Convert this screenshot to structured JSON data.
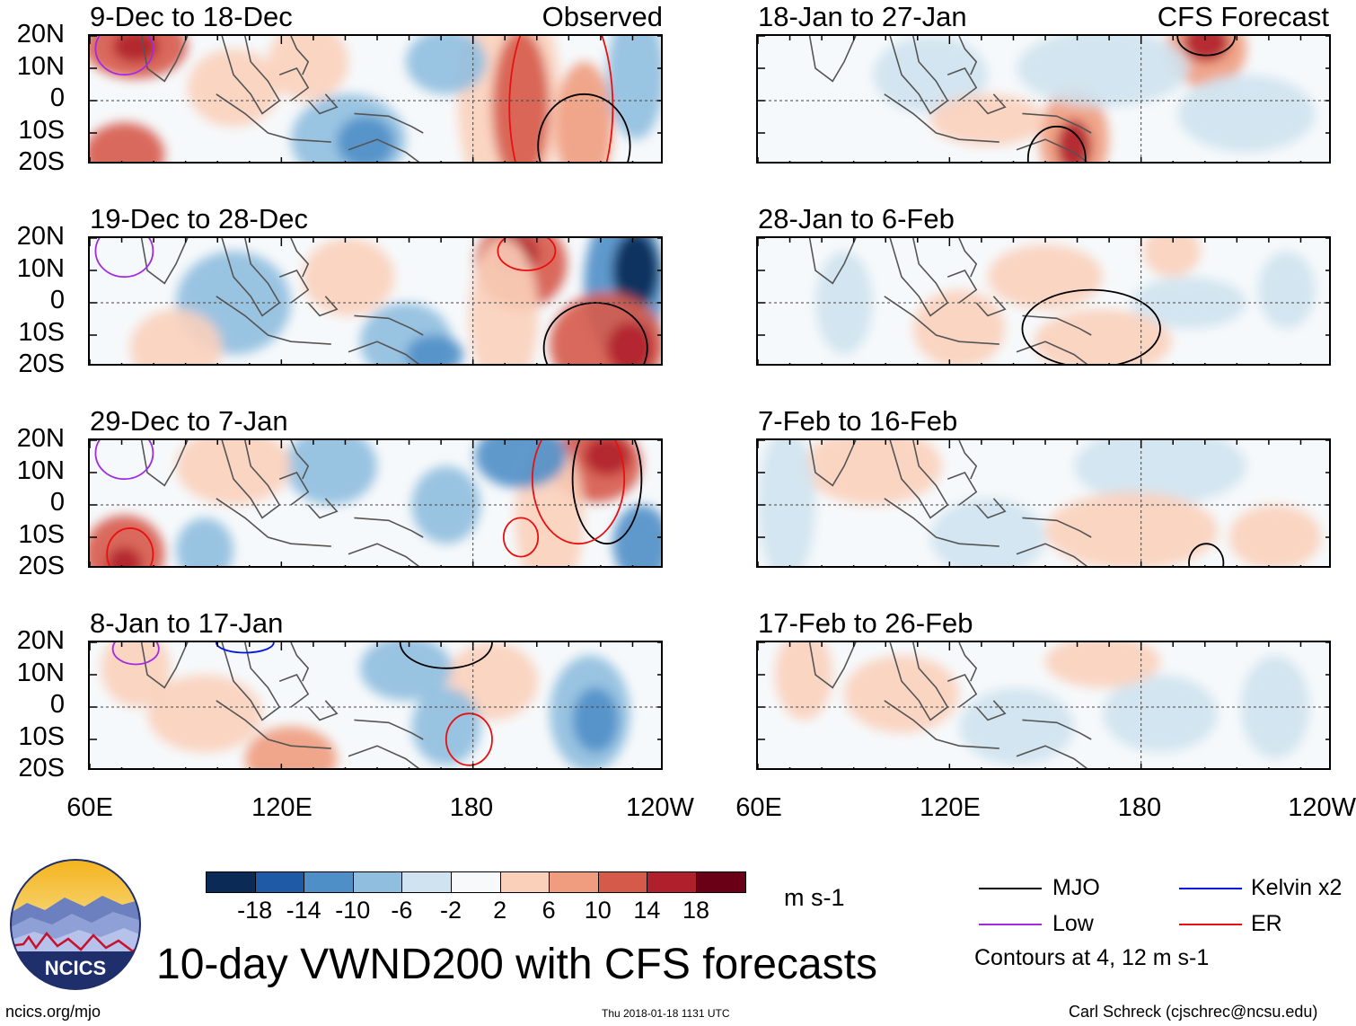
{
  "figure": {
    "main_title": "10-day VWND200 with CFS forecasts",
    "website": "ncics.org/mjo",
    "timestamp": "Thu 2018-01-18 1131 UTC",
    "author": "Carl Schreck (cjschrec@ncsu.edu)",
    "logo_text": "NCICS",
    "observed_tag": "Observed",
    "forecast_tag": "CFS Forecast"
  },
  "axes": {
    "lat_labels": [
      "20N",
      "10N",
      "0",
      "10S",
      "20S"
    ],
    "lon_labels": [
      "60E",
      "120E",
      "180",
      "120W"
    ]
  },
  "chart_data": {
    "type": "heatmap",
    "variable": "VWND200 anomaly (10-day mean)",
    "units": "m s-1",
    "xlim": [
      60,
      240
    ],
    "ylim": [
      -20,
      20
    ],
    "x_ticks": [
      "60E",
      "120E",
      "180",
      "120W"
    ],
    "y_ticks": [
      "20N",
      "10N",
      "0",
      "10S",
      "20S"
    ],
    "colorbar": {
      "levels": [
        -18,
        -14,
        -10,
        -6,
        -2,
        2,
        6,
        10,
        14,
        18
      ],
      "labels": [
        "-18",
        "-14",
        "-10",
        "-6",
        "-2",
        "2",
        "6",
        "10",
        "14",
        "18"
      ],
      "colors": [
        "#0b2a55",
        "#1f5aa6",
        "#4f8fc8",
        "#8fbedf",
        "#cfe3f0",
        "#f7f9fa",
        "#fbd0bb",
        "#f09c7e",
        "#d65a4a",
        "#b01f2c",
        "#6a0015"
      ],
      "unit_label": "m s-1"
    },
    "contours": {
      "legend": [
        {
          "name": "MJO",
          "color": "#000000"
        },
        {
          "name": "Kelvin x2",
          "color": "#0014e6"
        },
        {
          "name": "Low",
          "color": "#a22ae0"
        },
        {
          "name": "ER",
          "color": "#e81010"
        }
      ],
      "note": "Contours at 4, 12 m s-1"
    },
    "panels": [
      {
        "title": "9-Dec to 18-Dec",
        "source": "Observed"
      },
      {
        "title": "19-Dec to 28-Dec",
        "source": "Observed"
      },
      {
        "title": "29-Dec to 7-Jan",
        "source": "Observed"
      },
      {
        "title": "8-Jan to 17-Jan",
        "source": "Observed"
      },
      {
        "title": "18-Jan to 27-Jan",
        "source": "CFS Forecast"
      },
      {
        "title": "28-Jan to 6-Feb",
        "source": "CFS Forecast"
      },
      {
        "title": "7-Feb to 16-Feb",
        "source": "CFS Forecast"
      },
      {
        "title": "17-Feb to 26-Feb",
        "source": "CFS Forecast"
      }
    ]
  }
}
